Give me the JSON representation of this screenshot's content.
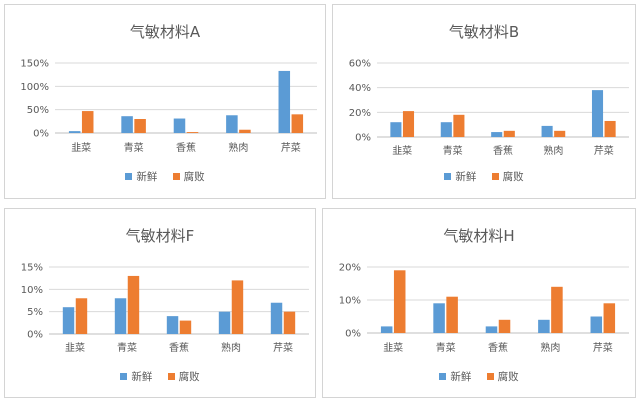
{
  "colors": {
    "fresh": "#5b9bd5",
    "spoiled": "#ed7d31",
    "grid": "#d9d9d9",
    "text": "#595959"
  },
  "chart_data": [
    {
      "type": "bar",
      "title": "气敏材料A",
      "categories": [
        "韭菜",
        "青菜",
        "香蕉",
        "熟肉",
        "芹菜"
      ],
      "series": [
        {
          "name": "新鲜",
          "values": [
            4,
            36,
            31,
            38,
            133
          ]
        },
        {
          "name": "腐败",
          "values": [
            47,
            30,
            2,
            7,
            40
          ]
        }
      ],
      "yticks": [
        "0%",
        "50%",
        "100%",
        "150%"
      ],
      "ylim": [
        0,
        150
      ],
      "grid": true,
      "legend": "bottom"
    },
    {
      "type": "bar",
      "title": "气敏材料B",
      "categories": [
        "韭菜",
        "青菜",
        "香蕉",
        "熟肉",
        "芹菜"
      ],
      "series": [
        {
          "name": "新鲜",
          "values": [
            12,
            12,
            4,
            9,
            38
          ]
        },
        {
          "name": "腐败",
          "values": [
            21,
            18,
            5,
            5,
            13
          ]
        }
      ],
      "yticks": [
        "0%",
        "20%",
        "40%",
        "60%"
      ],
      "ylim": [
        0,
        60
      ],
      "grid": true,
      "legend": "bottom"
    },
    {
      "type": "bar",
      "title": "气敏材料F",
      "categories": [
        "韭菜",
        "青菜",
        "香蕉",
        "熟肉",
        "芹菜"
      ],
      "series": [
        {
          "name": "新鲜",
          "values": [
            6,
            8,
            4,
            5,
            7
          ]
        },
        {
          "name": "腐败",
          "values": [
            8,
            13,
            3,
            12,
            5
          ]
        }
      ],
      "yticks": [
        "0%",
        "5%",
        "10%",
        "15%"
      ],
      "ylim": [
        0,
        15
      ],
      "grid": true,
      "legend": "bottom"
    },
    {
      "type": "bar",
      "title": "气敏材料H",
      "categories": [
        "韭菜",
        "青菜",
        "香蕉",
        "熟肉",
        "芹菜"
      ],
      "series": [
        {
          "name": "新鲜",
          "values": [
            2,
            9,
            2,
            4,
            5
          ]
        },
        {
          "name": "腐败",
          "values": [
            19,
            11,
            4,
            14,
            9
          ]
        }
      ],
      "yticks": [
        "0%",
        "10%",
        "20%"
      ],
      "ylim": [
        0,
        20
      ],
      "grid": true,
      "legend": "bottom"
    }
  ]
}
